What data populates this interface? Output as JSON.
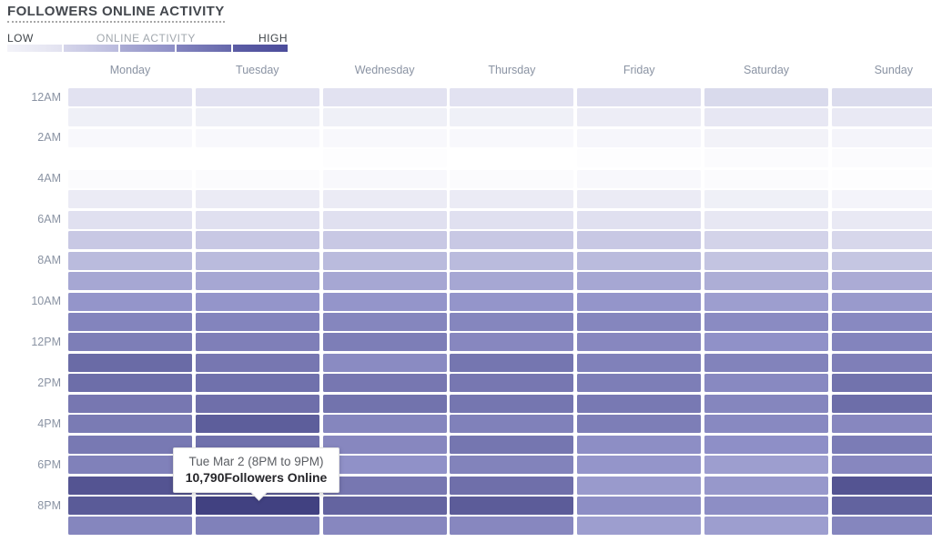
{
  "title": "FOLLOWERS ONLINE ACTIVITY",
  "legend": {
    "low_label": "LOW",
    "mid_label": "ONLINE ACTIVITY",
    "high_label": "HIGH",
    "segments": [
      [
        "#f3f3f9",
        "#e2e2f0"
      ],
      [
        "#d5d5ea",
        "#babbde"
      ],
      [
        "#aaabd4",
        "#8f90c7"
      ],
      [
        "#8384bf",
        "#6668ab"
      ],
      [
        "#5c5da5",
        "#4c4d9b"
      ]
    ]
  },
  "tooltip": {
    "line1": "Tue Mar 2 (8PM to 9PM)",
    "line2": "10,790Followers Online"
  },
  "chart_data": {
    "type": "heatmap",
    "title": "FOLLOWERS ONLINE ACTIVITY",
    "x_categories": [
      "Monday",
      "Tuesday",
      "Wednesday",
      "Thursday",
      "Friday",
      "Saturday",
      "Sunday"
    ],
    "y_categories": [
      "12AM",
      "1AM",
      "2AM",
      "3AM",
      "4AM",
      "5AM",
      "6AM",
      "7AM",
      "8AM",
      "9AM",
      "10AM",
      "11AM",
      "12PM",
      "1PM",
      "2PM",
      "3PM",
      "4PM",
      "5PM",
      "6PM",
      "7PM",
      "8PM",
      "9PM"
    ],
    "y_axis_ticks": [
      "12AM",
      "2AM",
      "4AM",
      "6AM",
      "8AM",
      "10AM",
      "12PM",
      "2PM",
      "4PM",
      "6PM",
      "8PM"
    ],
    "legend_position": "top-left",
    "color_scale": {
      "stops": [
        [
          0,
          "#ffffff"
        ],
        [
          50,
          "#9091c8"
        ],
        [
          100,
          "#414181"
        ]
      ],
      "low_label": "LOW",
      "high_label": "HIGH"
    },
    "values_unit": "relative online activity, 0-100 (100 = 10,790 followers online)",
    "values": [
      [
        13,
        13,
        13,
        13,
        14,
        17,
        16
      ],
      [
        7,
        7,
        7,
        7,
        8,
        11,
        10
      ],
      [
        3,
        3,
        3,
        3,
        4,
        6,
        5
      ],
      [
        0,
        0,
        1,
        0,
        1,
        2,
        2
      ],
      [
        2,
        2,
        3,
        2,
        3,
        2,
        1
      ],
      [
        9,
        9,
        9,
        9,
        9,
        7,
        5
      ],
      [
        14,
        14,
        14,
        14,
        14,
        11,
        10
      ],
      [
        25,
        25,
        25,
        25,
        25,
        20,
        18
      ],
      [
        31,
        31,
        31,
        31,
        31,
        27,
        26
      ],
      [
        40,
        40,
        40,
        40,
        40,
        37,
        38
      ],
      [
        48,
        48,
        48,
        48,
        48,
        44,
        46
      ],
      [
        58,
        58,
        57,
        57,
        57,
        54,
        55
      ],
      [
        62,
        61,
        62,
        56,
        56,
        50,
        58
      ],
      [
        74,
        66,
        54,
        67,
        60,
        59,
        61
      ],
      [
        72,
        70,
        66,
        66,
        62,
        55,
        69
      ],
      [
        66,
        71,
        69,
        67,
        65,
        57,
        72
      ],
      [
        64,
        82,
        57,
        60,
        62,
        55,
        56
      ],
      [
        65,
        70,
        56,
        67,
        52,
        51,
        63
      ],
      [
        60,
        63,
        50,
        59,
        48,
        44,
        56
      ],
      [
        88,
        80,
        66,
        71,
        46,
        47,
        88
      ],
      [
        84,
        100,
        78,
        83,
        52,
        52,
        79
      ],
      [
        57,
        60,
        56,
        56,
        44,
        44,
        57
      ]
    ],
    "highlight": {
      "day": "Tuesday",
      "day_index": 1,
      "hour_index": 20,
      "label": "Tue Mar 2 (8PM to 9PM)",
      "followers_online": "10,790"
    }
  }
}
